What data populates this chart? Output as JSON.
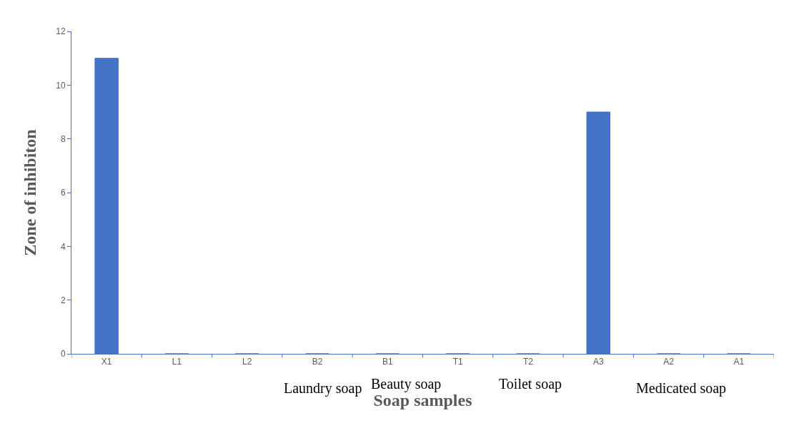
{
  "chart_data": {
    "type": "bar",
    "xlabel": "Soap samples",
    "ylabel": "Zone of inhibiton",
    "categories": [
      "X1",
      "L1",
      "L2",
      "B2",
      "B1",
      "T1",
      "T2",
      "A3",
      "A2",
      "A1"
    ],
    "values": [
      11,
      0,
      0,
      0,
      0,
      0,
      0,
      9,
      0,
      0
    ],
    "color": "#4472c4",
    "ylim": [
      0,
      12
    ],
    "yticks": [
      0,
      2,
      4,
      6,
      8,
      10,
      12
    ],
    "legend": false,
    "annotations": [
      "Laundry soap",
      "Beauty soap",
      "Toilet soap",
      "Medicated soap"
    ]
  }
}
